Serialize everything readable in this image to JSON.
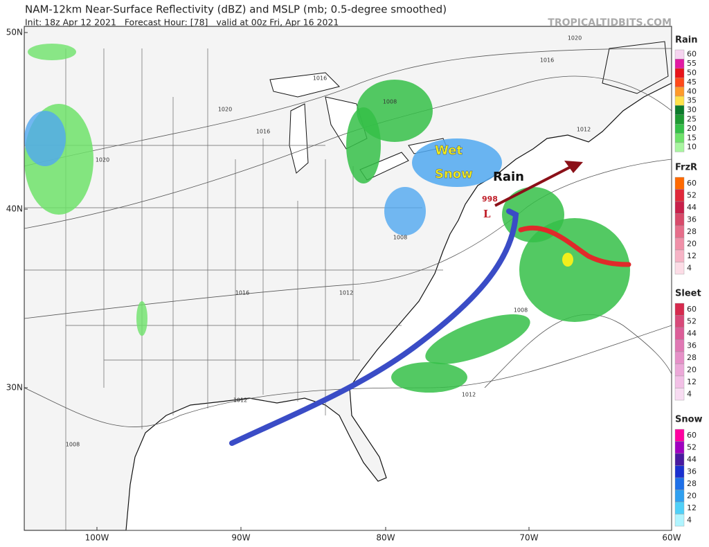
{
  "header": {
    "title": "NAM-12km Near-Surface Reflectivity (dBZ) and MSLP (mb; 0.5-degree smoothed)",
    "subtitle": "Init: 18z Apr 12 2021   Forecast Hour: [78]   valid at 00z Fri, Apr 16 2021",
    "brand": "TROPICALTIDBITS.COM"
  },
  "map": {
    "lat_labels": [
      "50N",
      "40N",
      "30N"
    ],
    "lon_labels": [
      "100W",
      "90W",
      "80W",
      "70W",
      "60W"
    ],
    "isobar_labels": [
      "1020",
      "1020",
      "1020",
      "1016",
      "1016",
      "1016",
      "1016",
      "1012",
      "1012",
      "1012",
      "1012",
      "1008",
      "1008",
      "1008",
      "1008"
    ],
    "annotations": [
      {
        "text": "Wet",
        "color": "#f2ee1c"
      },
      {
        "text": "Snow",
        "color": "#f2ee1c"
      },
      {
        "text": "Rain",
        "color": "#111111"
      },
      {
        "text": "998",
        "color": "#c0202a"
      },
      {
        "text": "L",
        "color": "#c0202a"
      }
    ]
  },
  "legend": [
    {
      "title": "Rain",
      "levels": [
        {
          "label": "60",
          "color": "#f6d4f0"
        },
        {
          "label": "55",
          "color": "#e21aa3"
        },
        {
          "label": "50",
          "color": "#e8141a"
        },
        {
          "label": "45",
          "color": "#ff4a1a"
        },
        {
          "label": "40",
          "color": "#ff9a2a"
        },
        {
          "label": "35",
          "color": "#ffe14a"
        },
        {
          "label": "30",
          "color": "#0b7a2a"
        },
        {
          "label": "25",
          "color": "#1e9a32"
        },
        {
          "label": "20",
          "color": "#35c048"
        },
        {
          "label": "15",
          "color": "#6ee26a"
        },
        {
          "label": "10",
          "color": "#a8f5a0"
        }
      ]
    },
    {
      "title": "FrzR",
      "levels": [
        {
          "label": "60",
          "color": "#ff6a00"
        },
        {
          "label": "52",
          "color": "#e0283a"
        },
        {
          "label": "44",
          "color": "#c8204a"
        },
        {
          "label": "36",
          "color": "#d84a6a"
        },
        {
          "label": "28",
          "color": "#e66e8a"
        },
        {
          "label": "20",
          "color": "#f090a8"
        },
        {
          "label": "12",
          "color": "#f6b4c6"
        },
        {
          "label": "4",
          "color": "#fcdce6"
        }
      ]
    },
    {
      "title": "Sleet",
      "levels": [
        {
          "label": "60",
          "color": "#d62a4e"
        },
        {
          "label": "52",
          "color": "#d84a7a"
        },
        {
          "label": "44",
          "color": "#dc5e98"
        },
        {
          "label": "36",
          "color": "#e078b4"
        },
        {
          "label": "28",
          "color": "#e690c8"
        },
        {
          "label": "20",
          "color": "#eca8d8"
        },
        {
          "label": "12",
          "color": "#f2c0e6"
        },
        {
          "label": "4",
          "color": "#f8dcf2"
        }
      ]
    },
    {
      "title": "Snow",
      "levels": [
        {
          "label": "60",
          "color": "#ff00a0"
        },
        {
          "label": "52",
          "color": "#a000c0"
        },
        {
          "label": "44",
          "color": "#4a1aa0"
        },
        {
          "label": "36",
          "color": "#1a30d0"
        },
        {
          "label": "28",
          "color": "#1e70e8"
        },
        {
          "label": "20",
          "color": "#30a0f0"
        },
        {
          "label": "12",
          "color": "#50d0f8"
        },
        {
          "label": "4",
          "color": "#b0f4ff"
        }
      ]
    }
  ]
}
